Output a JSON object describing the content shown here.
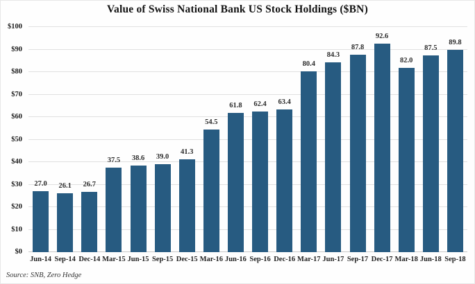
{
  "title": "Value of Swiss National Bank US Stock Holdings ($BN)",
  "source": "Source: SNB, Zero Hedge",
  "colors": {
    "bar": "#275B81",
    "grid": "#E0E0E0",
    "baseline": "#C7C7C7",
    "title_text": "#121212",
    "axis_text": "#1C1C1C",
    "value_text": "#2B2B2B"
  },
  "chart_data": {
    "type": "bar",
    "title": "Value of Swiss National Bank US Stock Holdings ($BN)",
    "categories": [
      "Jun-14",
      "Sep-14",
      "Dec-14",
      "Mar-15",
      "Jun-15",
      "Sep-15",
      "Dec-15",
      "Mar-16",
      "Jun-16",
      "Sep-16",
      "Dec-16",
      "Mar-17",
      "Jun-17",
      "Sep-17",
      "Dec-17",
      "Mar-18",
      "Jun-18",
      "Sep-18"
    ],
    "values": [
      27.0,
      26.1,
      26.7,
      37.5,
      38.6,
      39.0,
      41.3,
      54.5,
      61.8,
      62.4,
      63.4,
      80.4,
      84.3,
      87.8,
      92.6,
      82.0,
      87.5,
      89.8
    ],
    "xlabel": "",
    "ylabel": "",
    "ylim": [
      0,
      100
    ],
    "ytick_step": 10,
    "ytick_prefix": "$",
    "ytick_labels": [
      "$0",
      "$10",
      "$20",
      "$30",
      "$40",
      "$50",
      "$60",
      "$70",
      "$80",
      "$90",
      "$100"
    ],
    "grid": true,
    "legend": false,
    "value_labels": true,
    "source": "Source: SNB, Zero Hedge"
  }
}
